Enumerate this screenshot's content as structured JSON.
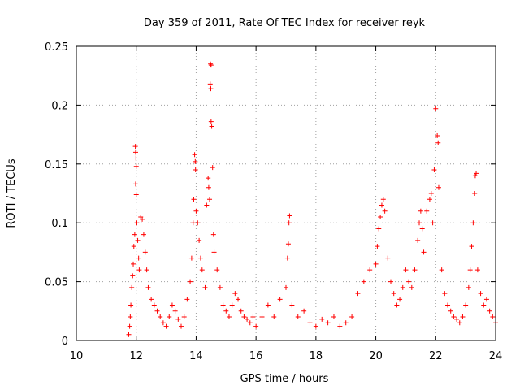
{
  "chart_data": {
    "type": "scatter",
    "title": "Day 359 of 2011, Rate Of TEC Index for receiver reyk",
    "xlabel": "GPS time / hours",
    "ylabel": "ROTI / TECUs",
    "xlim": [
      10,
      24
    ],
    "ylim": [
      0,
      0.25
    ],
    "x_ticks": [
      "10",
      "12",
      "14",
      "16",
      "18",
      "20",
      "22",
      "24"
    ],
    "y_ticks": [
      "0",
      "0.05",
      "0.1",
      "0.15",
      "0.2",
      "0.25"
    ],
    "grid": true,
    "marker": "plus",
    "color": "#ff0000",
    "series": [
      {
        "name": "ROTI",
        "note": "dense point cloud; representative sample shown",
        "points": [
          [
            11.75,
            0.005
          ],
          [
            11.78,
            0.012
          ],
          [
            11.8,
            0.02
          ],
          [
            11.82,
            0.03
          ],
          [
            11.85,
            0.045
          ],
          [
            11.88,
            0.055
          ],
          [
            11.9,
            0.065
          ],
          [
            11.92,
            0.08
          ],
          [
            11.95,
            0.09
          ],
          [
            11.97,
            0.165
          ],
          [
            11.98,
            0.16
          ],
          [
            11.99,
            0.155
          ],
          [
            12.0,
            0.148
          ],
          [
            11.98,
            0.133
          ],
          [
            12.0,
            0.124
          ],
          [
            12.02,
            0.1
          ],
          [
            12.05,
            0.085
          ],
          [
            12.08,
            0.07
          ],
          [
            12.1,
            0.06
          ],
          [
            12.15,
            0.105
          ],
          [
            12.2,
            0.103
          ],
          [
            12.25,
            0.09
          ],
          [
            12.3,
            0.075
          ],
          [
            12.35,
            0.06
          ],
          [
            12.4,
            0.045
          ],
          [
            12.5,
            0.035
          ],
          [
            12.6,
            0.03
          ],
          [
            12.7,
            0.025
          ],
          [
            12.8,
            0.02
          ],
          [
            12.9,
            0.015
          ],
          [
            13.0,
            0.012
          ],
          [
            13.1,
            0.02
          ],
          [
            13.2,
            0.03
          ],
          [
            13.3,
            0.025
          ],
          [
            13.4,
            0.018
          ],
          [
            13.5,
            0.012
          ],
          [
            13.6,
            0.02
          ],
          [
            13.7,
            0.035
          ],
          [
            13.8,
            0.05
          ],
          [
            13.85,
            0.07
          ],
          [
            13.9,
            0.1
          ],
          [
            13.92,
            0.12
          ],
          [
            13.95,
            0.158
          ],
          [
            13.97,
            0.152
          ],
          [
            13.98,
            0.145
          ],
          [
            14.0,
            0.11
          ],
          [
            14.05,
            0.1
          ],
          [
            14.1,
            0.085
          ],
          [
            14.15,
            0.07
          ],
          [
            14.2,
            0.06
          ],
          [
            14.3,
            0.045
          ],
          [
            14.35,
            0.115
          ],
          [
            14.4,
            0.138
          ],
          [
            14.42,
            0.13
          ],
          [
            14.45,
            0.12
          ],
          [
            14.48,
            0.235
          ],
          [
            14.5,
            0.234
          ],
          [
            14.47,
            0.218
          ],
          [
            14.49,
            0.214
          ],
          [
            14.5,
            0.186
          ],
          [
            14.52,
            0.182
          ],
          [
            14.55,
            0.147
          ],
          [
            14.58,
            0.09
          ],
          [
            14.6,
            0.075
          ],
          [
            14.7,
            0.06
          ],
          [
            14.8,
            0.045
          ],
          [
            14.9,
            0.03
          ],
          [
            15.0,
            0.025
          ],
          [
            15.1,
            0.02
          ],
          [
            15.2,
            0.03
          ],
          [
            15.3,
            0.04
          ],
          [
            15.4,
            0.035
          ],
          [
            15.5,
            0.025
          ],
          [
            15.6,
            0.02
          ],
          [
            15.7,
            0.018
          ],
          [
            15.8,
            0.015
          ],
          [
            15.9,
            0.02
          ],
          [
            16.0,
            0.012
          ],
          [
            16.2,
            0.02
          ],
          [
            16.4,
            0.03
          ],
          [
            16.6,
            0.02
          ],
          [
            16.8,
            0.035
          ],
          [
            17.0,
            0.045
          ],
          [
            17.05,
            0.07
          ],
          [
            17.08,
            0.082
          ],
          [
            17.1,
            0.1
          ],
          [
            17.12,
            0.106
          ],
          [
            17.2,
            0.03
          ],
          [
            17.4,
            0.02
          ],
          [
            17.6,
            0.025
          ],
          [
            17.8,
            0.015
          ],
          [
            18.0,
            0.012
          ],
          [
            18.2,
            0.018
          ],
          [
            18.4,
            0.015
          ],
          [
            18.6,
            0.02
          ],
          [
            18.8,
            0.012
          ],
          [
            19.0,
            0.015
          ],
          [
            19.2,
            0.02
          ],
          [
            19.4,
            0.04
          ],
          [
            19.6,
            0.05
          ],
          [
            19.8,
            0.06
          ],
          [
            20.0,
            0.065
          ],
          [
            20.05,
            0.08
          ],
          [
            20.1,
            0.095
          ],
          [
            20.15,
            0.105
          ],
          [
            20.2,
            0.115
          ],
          [
            20.25,
            0.12
          ],
          [
            20.3,
            0.11
          ],
          [
            20.4,
            0.07
          ],
          [
            20.5,
            0.05
          ],
          [
            20.6,
            0.04
          ],
          [
            20.7,
            0.03
          ],
          [
            20.8,
            0.035
          ],
          [
            20.9,
            0.045
          ],
          [
            21.0,
            0.06
          ],
          [
            21.1,
            0.05
          ],
          [
            21.2,
            0.045
          ],
          [
            21.3,
            0.06
          ],
          [
            21.4,
            0.085
          ],
          [
            21.45,
            0.1
          ],
          [
            21.5,
            0.11
          ],
          [
            21.55,
            0.095
          ],
          [
            21.6,
            0.075
          ],
          [
            21.7,
            0.11
          ],
          [
            21.8,
            0.12
          ],
          [
            21.85,
            0.125
          ],
          [
            21.9,
            0.1
          ],
          [
            21.95,
            0.145
          ],
          [
            22.0,
            0.197
          ],
          [
            22.05,
            0.174
          ],
          [
            22.08,
            0.168
          ],
          [
            22.1,
            0.13
          ],
          [
            22.2,
            0.06
          ],
          [
            22.3,
            0.04
          ],
          [
            22.4,
            0.03
          ],
          [
            22.5,
            0.025
          ],
          [
            22.6,
            0.02
          ],
          [
            22.7,
            0.018
          ],
          [
            22.8,
            0.015
          ],
          [
            22.9,
            0.02
          ],
          [
            23.0,
            0.03
          ],
          [
            23.1,
            0.045
          ],
          [
            23.15,
            0.06
          ],
          [
            23.2,
            0.08
          ],
          [
            23.25,
            0.1
          ],
          [
            23.3,
            0.125
          ],
          [
            23.32,
            0.14
          ],
          [
            23.35,
            0.142
          ],
          [
            23.4,
            0.06
          ],
          [
            23.5,
            0.04
          ],
          [
            23.6,
            0.03
          ],
          [
            23.7,
            0.035
          ],
          [
            23.8,
            0.025
          ],
          [
            23.9,
            0.02
          ],
          [
            24.0,
            0.015
          ]
        ]
      }
    ]
  }
}
